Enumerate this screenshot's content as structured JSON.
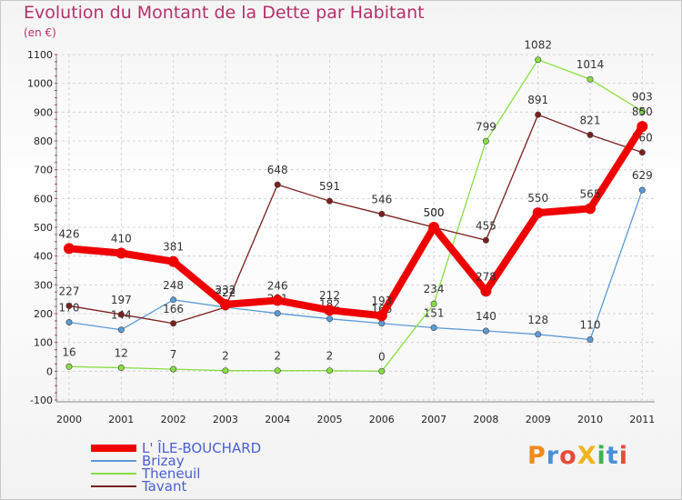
{
  "title": "Evolution du Montant de la Dette par Habitant",
  "subtitle": "(en €)",
  "logo_text": "ProXiti",
  "chart_data": {
    "type": "line",
    "x": [
      "2000",
      "2001",
      "2002",
      "2003",
      "2004",
      "2005",
      "2006",
      "2007",
      "2008",
      "2009",
      "2010",
      "2011"
    ],
    "ylim": [
      -100,
      1100
    ],
    "yticks": [
      -100,
      0,
      100,
      200,
      300,
      400,
      500,
      600,
      700,
      800,
      900,
      1000,
      1100
    ],
    "grid": true,
    "series": [
      {
        "name": "L' ÎLE-BOUCHARD",
        "color": "#ee0000",
        "values": [
          426,
          410,
          381,
          232,
          246,
          212,
          193,
          500,
          278,
          550,
          565,
          850
        ]
      },
      {
        "name": "Brizay",
        "color": "#5b9bd5",
        "values": [
          170,
          144,
          248,
          222,
          201,
          182,
          166,
          151,
          140,
          128,
          110,
          629
        ]
      },
      {
        "name": "Theneuil",
        "color": "#88dd44",
        "values": [
          16,
          12,
          7,
          2,
          2,
          2,
          0,
          234,
          799,
          1082,
          1014,
          903
        ]
      },
      {
        "name": "Tavant",
        "color": "#7a1f1f",
        "values": [
          227,
          197,
          166,
          222,
          648,
          591,
          546,
          500,
          455,
          891,
          821,
          760
        ]
      }
    ]
  }
}
